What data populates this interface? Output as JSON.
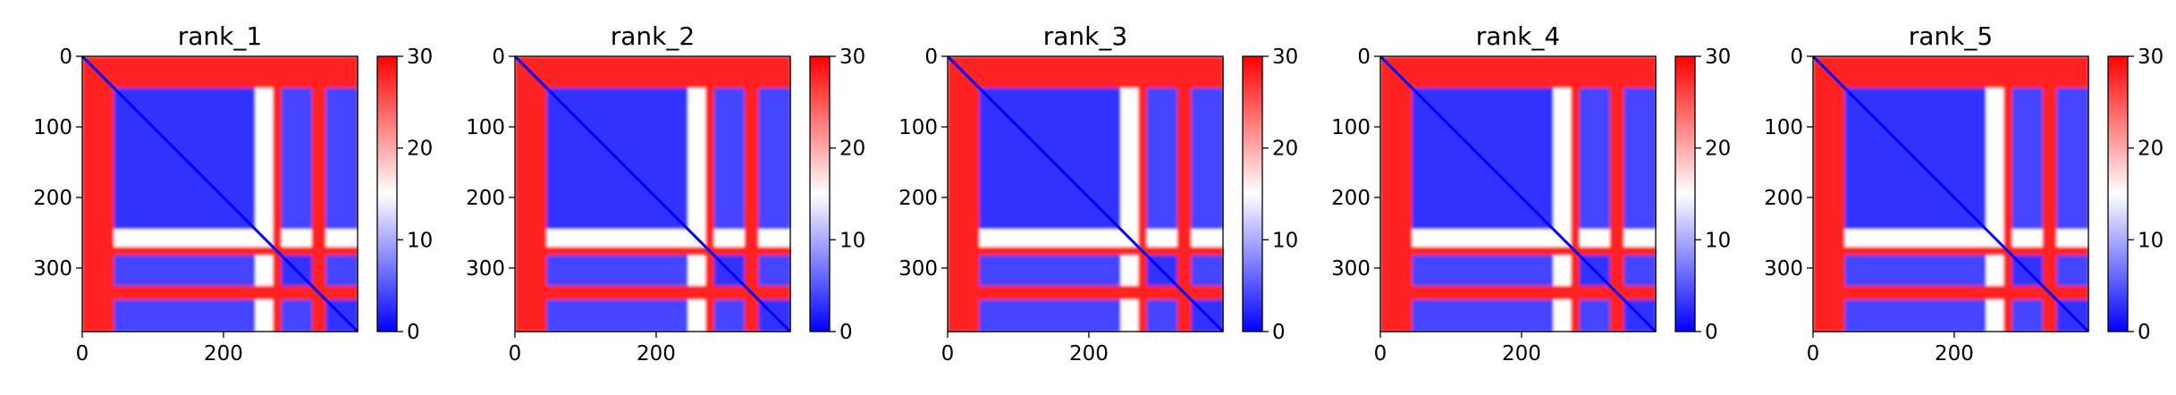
{
  "colors": {
    "low": "#0000ff",
    "mid": "#ffffff",
    "high": "#ff0000"
  },
  "chart_data": [
    {
      "type": "heatmap",
      "title": "rank_1",
      "seq_len": 390,
      "xticks": [
        0,
        200
      ],
      "yticks": [
        0,
        100,
        200,
        300
      ],
      "clim": [
        0,
        30
      ],
      "colorbar_ticks": [
        0,
        10,
        20,
        30
      ],
      "colormap": "bwr",
      "regions": [
        {
          "range": [
            0,
            45
          ],
          "level": "high"
        },
        {
          "range": [
            45,
            245
          ],
          "level": "low"
        },
        {
          "range": [
            245,
            270
          ],
          "level": "mid"
        },
        {
          "range": [
            270,
            282
          ],
          "level": "high"
        },
        {
          "range": [
            282,
            325
          ],
          "level": "low"
        },
        {
          "range": [
            325,
            345
          ],
          "level": "high"
        },
        {
          "range": [
            345,
            390
          ],
          "level": "low"
        }
      ]
    },
    {
      "type": "heatmap",
      "title": "rank_2",
      "seq_len": 390,
      "xticks": [
        0,
        200
      ],
      "yticks": [
        0,
        100,
        200,
        300
      ],
      "clim": [
        0,
        30
      ],
      "colorbar_ticks": [
        0,
        10,
        20,
        30
      ],
      "colormap": "bwr",
      "regions": [
        {
          "range": [
            0,
            45
          ],
          "level": "high"
        },
        {
          "range": [
            45,
            245
          ],
          "level": "low"
        },
        {
          "range": [
            245,
            270
          ],
          "level": "mid"
        },
        {
          "range": [
            270,
            282
          ],
          "level": "high"
        },
        {
          "range": [
            282,
            325
          ],
          "level": "low"
        },
        {
          "range": [
            325,
            345
          ],
          "level": "high"
        },
        {
          "range": [
            345,
            390
          ],
          "level": "low"
        }
      ]
    },
    {
      "type": "heatmap",
      "title": "rank_3",
      "seq_len": 390,
      "xticks": [
        0,
        200
      ],
      "yticks": [
        0,
        100,
        200,
        300
      ],
      "clim": [
        0,
        30
      ],
      "colorbar_ticks": [
        0,
        10,
        20,
        30
      ],
      "colormap": "bwr",
      "regions": [
        {
          "range": [
            0,
            45
          ],
          "level": "high"
        },
        {
          "range": [
            45,
            245
          ],
          "level": "low"
        },
        {
          "range": [
            245,
            270
          ],
          "level": "mid"
        },
        {
          "range": [
            270,
            282
          ],
          "level": "high"
        },
        {
          "range": [
            282,
            325
          ],
          "level": "low"
        },
        {
          "range": [
            325,
            345
          ],
          "level": "high"
        },
        {
          "range": [
            345,
            390
          ],
          "level": "low"
        }
      ]
    },
    {
      "type": "heatmap",
      "title": "rank_4",
      "seq_len": 390,
      "xticks": [
        0,
        200
      ],
      "yticks": [
        0,
        100,
        200,
        300
      ],
      "clim": [
        0,
        30
      ],
      "colorbar_ticks": [
        0,
        10,
        20,
        30
      ],
      "colormap": "bwr",
      "regions": [
        {
          "range": [
            0,
            45
          ],
          "level": "high"
        },
        {
          "range": [
            45,
            245
          ],
          "level": "low"
        },
        {
          "range": [
            245,
            270
          ],
          "level": "mid"
        },
        {
          "range": [
            270,
            282
          ],
          "level": "high"
        },
        {
          "range": [
            282,
            325
          ],
          "level": "low"
        },
        {
          "range": [
            325,
            345
          ],
          "level": "high"
        },
        {
          "range": [
            345,
            390
          ],
          "level": "low"
        }
      ]
    },
    {
      "type": "heatmap",
      "title": "rank_5",
      "seq_len": 390,
      "xticks": [
        0,
        200
      ],
      "yticks": [
        0,
        100,
        200,
        300
      ],
      "clim": [
        0,
        30
      ],
      "colorbar_ticks": [
        0,
        10,
        20,
        30
      ],
      "colormap": "bwr",
      "regions": [
        {
          "range": [
            0,
            45
          ],
          "level": "high"
        },
        {
          "range": [
            45,
            245
          ],
          "level": "low"
        },
        {
          "range": [
            245,
            270
          ],
          "level": "mid"
        },
        {
          "range": [
            270,
            282
          ],
          "level": "high"
        },
        {
          "range": [
            282,
            325
          ],
          "level": "low"
        },
        {
          "range": [
            325,
            345
          ],
          "level": "high"
        },
        {
          "range": [
            345,
            390
          ],
          "level": "low"
        }
      ]
    }
  ]
}
